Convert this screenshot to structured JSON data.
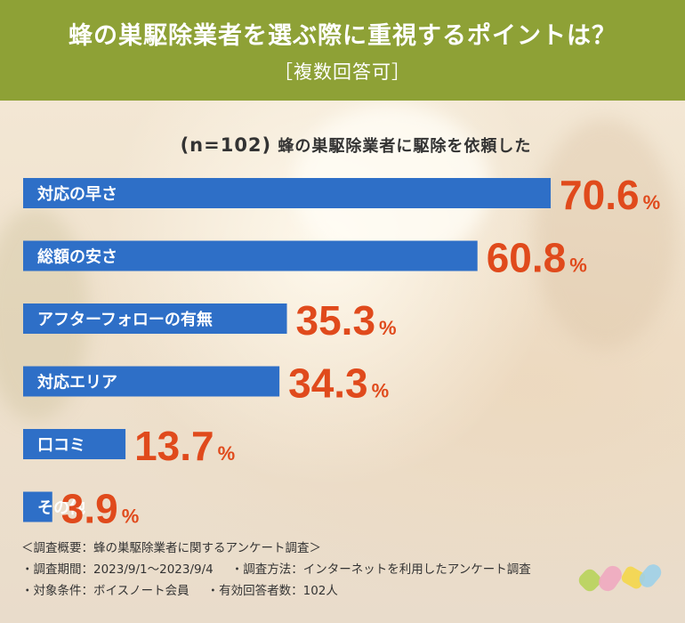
{
  "header": {
    "title": "蜂の巣駆除業者を選ぶ際に重視するポイントは？",
    "subtitle": "［複数回答可］"
  },
  "chart_data": {
    "type": "bar",
    "n_label": "(n=102)",
    "group_label": "蜂の巣駆除業者に駆除を依頼した",
    "categories": [
      "対応の早さ",
      "総額の安さ",
      "アフターフォローの有無",
      "対応エリア",
      "口コミ",
      "その他"
    ],
    "values": [
      70.6,
      60.8,
      35.3,
      34.3,
      13.7,
      3.9
    ],
    "unit": "%",
    "bar_color": "#2e6fc7",
    "value_color": "#e04a1c"
  },
  "notes": {
    "heading": "＜調査概要：蜂の巣駆除業者に関するアンケート調査＞",
    "period": "・調査期間：2023/9/1〜2023/9/4",
    "method": "・調査方法：インターネットを利用したアンケート調査",
    "target": "・対象条件：ボイスノート会員",
    "count": "・有効回答者数：102人"
  },
  "colors": {
    "header_bg": "#8ea136",
    "logo": [
      "#b8d35a",
      "#f0a8c0",
      "#f4d64a",
      "#9fd0e8"
    ]
  }
}
